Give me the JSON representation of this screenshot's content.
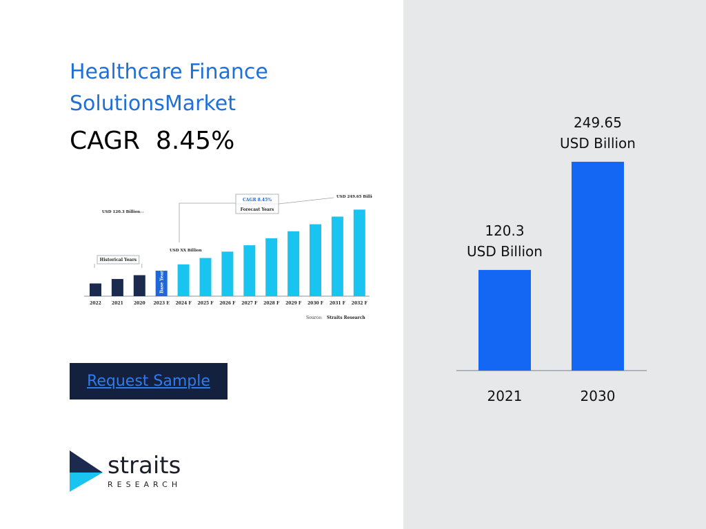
{
  "header": {
    "title": "Healthcare Finance SolutionsMarket",
    "cagr_text": "CAGR  8.45%"
  },
  "cta": {
    "label": "Request Sample"
  },
  "logo": {
    "word": "straits",
    "sub": "RESEARCH"
  },
  "colors": {
    "title": "#1f6fd6",
    "bar": "#1467f3",
    "panel": "#e7e8ea",
    "cta_bg": "#13213e",
    "thumb_hist": "#1b2a4d",
    "thumb_base": "#1f67d8",
    "thumb_fore": "#19c4f0"
  },
  "chart_data": [
    {
      "type": "bar",
      "categories": [
        "2021",
        "2030"
      ],
      "values": [
        120.3,
        249.65
      ],
      "value_labels": [
        "120.3\nUSD Billion",
        "249.65\nUSD Billion"
      ],
      "ylim": [
        0,
        280
      ],
      "grid": false,
      "legend": "none"
    },
    {
      "type": "bar",
      "categories": [
        "2022",
        "2021",
        "2020",
        "2023 E",
        "2024 F",
        "2025 F",
        "2026 F",
        "2027 F",
        "2028 F",
        "2029 F",
        "2030 F",
        "2031 F",
        "2032 F"
      ],
      "values": [
        20,
        27,
        33,
        40,
        50,
        60,
        70,
        80,
        91,
        102,
        113,
        125,
        136
      ],
      "groups": [
        "historical",
        "historical",
        "historical",
        "base",
        "forecast",
        "forecast",
        "forecast",
        "forecast",
        "forecast",
        "forecast",
        "forecast",
        "forecast",
        "forecast"
      ],
      "annotations": {
        "start": "USD 120.3 Billion",
        "end": "USD 249.65 Billion",
        "mid": "USD XX Billion",
        "cagr": "CAGR 8.45%",
        "forecast": "Forecast Years",
        "historical": "Historical Years",
        "base": "Base Year",
        "source_label": "Source:",
        "source_value": "Straits Research"
      },
      "ylim": [
        0,
        145
      ]
    }
  ]
}
